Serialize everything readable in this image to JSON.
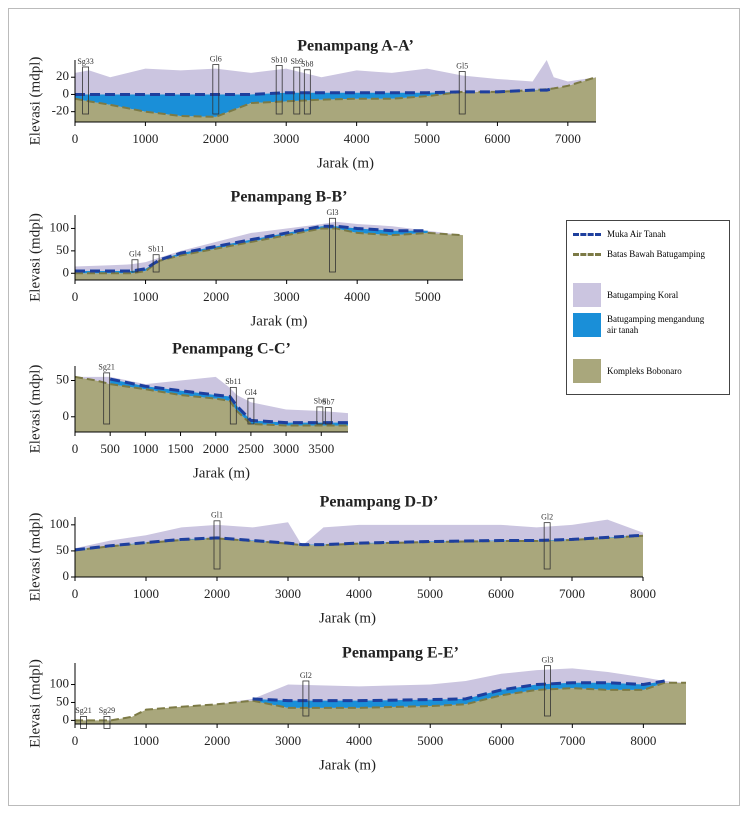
{
  "legend": [
    {
      "label": "Muka Air Tanah",
      "color": "#1e3f9e",
      "kind": "dash"
    },
    {
      "label": "Batas Bawah Batugamping",
      "color": "#7c7a45",
      "kind": "dash"
    },
    {
      "label": "Batugamping Koral",
      "color": "#cbc5e0",
      "kind": "fill"
    },
    {
      "label": "Batugamping mengandung air tanah",
      "color": "#1a8fd8",
      "kind": "fill"
    },
    {
      "label": "Kompleks Bobonaro",
      "color": "#a9a77c",
      "kind": "fill"
    }
  ],
  "chart_data": [
    {
      "type": "area",
      "title": "Penampang A-A’",
      "xlabel": "Jarak (m)",
      "ylabel": "Elevasi (mdpl)",
      "xlim": [
        0,
        7400
      ],
      "ylim": [
        -32,
        40
      ],
      "xticks": [
        0,
        1000,
        2000,
        3000,
        4000,
        5000,
        6000,
        7000
      ],
      "yticks": [
        -20,
        0,
        20
      ],
      "x": [
        0,
        200,
        500,
        1000,
        1500,
        2000,
        2500,
        3000,
        3500,
        4000,
        4500,
        5000,
        5500,
        6000,
        6500,
        6700,
        6800,
        7000,
        7400
      ],
      "surface": [
        25,
        28,
        20,
        30,
        28,
        30,
        25,
        30,
        20,
        28,
        25,
        30,
        22,
        18,
        15,
        40,
        20,
        15,
        20
      ],
      "water_table": [
        0,
        0,
        0,
        0,
        0,
        0,
        0,
        2,
        2,
        2,
        2,
        2,
        3,
        3,
        5,
        5,
        7,
        null,
        null
      ],
      "limestone_base": [
        -5,
        -8,
        -12,
        -20,
        -25,
        -26,
        -10,
        -8,
        -6,
        -5,
        -5,
        -2,
        3,
        3,
        5,
        6,
        7,
        10,
        20
      ],
      "wells": [
        {
          "label": "Sg33",
          "x": 150
        },
        {
          "label": "Gl6",
          "x": 2000
        },
        {
          "label": "Sb10",
          "x": 2900
        },
        {
          "label": "Sb9",
          "x": 3150
        },
        {
          "label": "Sb8",
          "x": 3300
        },
        {
          "label": "Gl5",
          "x": 5500
        }
      ]
    },
    {
      "type": "area",
      "title": "Penampang B-B’",
      "xlabel": "Jarak (m)",
      "ylabel": "Elevasi (mdpl)",
      "xlim": [
        0,
        5500
      ],
      "ylim": [
        -15,
        130
      ],
      "xticks": [
        0,
        1000,
        2000,
        3000,
        4000,
        5000
      ],
      "yticks": [
        0,
        50,
        100
      ],
      "x": [
        0,
        500,
        800,
        1000,
        1200,
        1500,
        2000,
        2500,
        3000,
        3500,
        3700,
        4000,
        4500,
        5000,
        5500
      ],
      "surface": [
        15,
        18,
        20,
        25,
        35,
        50,
        70,
        90,
        100,
        110,
        115,
        110,
        105,
        95,
        85
      ],
      "water_table": [
        5,
        5,
        5,
        10,
        30,
        45,
        60,
        75,
        90,
        105,
        105,
        100,
        95,
        95,
        null
      ],
      "limestone_base": [
        0,
        0,
        0,
        5,
        28,
        40,
        55,
        70,
        85,
        100,
        100,
        90,
        85,
        90,
        85
      ],
      "wells": [
        {
          "label": "Gl4",
          "x": 850
        },
        {
          "label": "Sb11",
          "x": 1150
        },
        {
          "label": "Gl3",
          "x": 3650
        }
      ]
    },
    {
      "type": "area",
      "title": "Penampang C-C’",
      "xlabel": "Jarak (m)",
      "ylabel": "Elevasi (mdpl)",
      "xlim": [
        0,
        3880
      ],
      "ylim": [
        -21,
        70
      ],
      "xticks": [
        0,
        500,
        1000,
        1500,
        2000,
        2500,
        3000,
        3500
      ],
      "yticks": [
        0,
        50
      ],
      "x": [
        0,
        300,
        500,
        1000,
        1500,
        2000,
        2200,
        2300,
        2500,
        3000,
        3500,
        3880
      ],
      "surface": [
        55,
        55,
        55,
        45,
        50,
        55,
        40,
        30,
        20,
        10,
        8,
        5
      ],
      "water_table": [
        null,
        null,
        52,
        42,
        36,
        30,
        28,
        15,
        -5,
        -8,
        -8,
        -8
      ],
      "limestone_base": [
        55,
        50,
        45,
        38,
        30,
        25,
        22,
        8,
        -10,
        -12,
        -12,
        -12
      ],
      "wells": [
        {
          "label": "Sg21",
          "x": 450
        },
        {
          "label": "Sb11",
          "x": 2250
        },
        {
          "label": "Gl4",
          "x": 2500
        },
        {
          "label": "Sb6",
          "x": 3480
        },
        {
          "label": "Sb7",
          "x": 3600
        }
      ]
    },
    {
      "type": "area",
      "title": "Penampang D-D’",
      "xlabel": "Jarak (m)",
      "ylabel": "Elevasi (mdpl)",
      "xlim": [
        0,
        8000
      ],
      "ylim": [
        0,
        115
      ],
      "xticks": [
        0,
        1000,
        2000,
        3000,
        4000,
        5000,
        6000,
        7000,
        8000
      ],
      "yticks": [
        0,
        50,
        100
      ],
      "x": [
        0,
        500,
        1000,
        1500,
        2000,
        2500,
        3000,
        3200,
        3500,
        4000,
        5000,
        6000,
        6500,
        7000,
        7500,
        8000
      ],
      "surface": [
        55,
        70,
        80,
        95,
        100,
        95,
        105,
        60,
        95,
        100,
        100,
        100,
        95,
        100,
        110,
        85
      ],
      "water_table": [
        52,
        60,
        66,
        72,
        75,
        70,
        65,
        62,
        62,
        65,
        68,
        70,
        70,
        72,
        76,
        80
      ],
      "limestone_base": [
        51,
        59,
        65,
        71,
        74,
        69,
        64,
        61,
        61,
        64,
        67,
        69,
        69,
        71,
        75,
        79
      ],
      "wells": [
        {
          "label": "Gl1",
          "x": 2000
        },
        {
          "label": "Gl2",
          "x": 6650
        }
      ]
    },
    {
      "type": "area",
      "title": "Penampang E-E’",
      "xlabel": "Jarak (m)",
      "ylabel": "Elevasi (mdpl)",
      "xlim": [
        0,
        8600
      ],
      "ylim": [
        -10,
        160
      ],
      "xticks": [
        0,
        1000,
        2000,
        3000,
        4000,
        5000,
        6000,
        7000,
        8000
      ],
      "yticks": [
        0,
        50,
        100
      ],
      "x": [
        0,
        500,
        800,
        1000,
        1500,
        2000,
        2500,
        3000,
        4000,
        5000,
        5500,
        6000,
        6500,
        7000,
        7500,
        8000,
        8300,
        8600
      ],
      "surface": [
        0,
        0,
        10,
        30,
        38,
        45,
        60,
        100,
        95,
        100,
        110,
        130,
        140,
        145,
        135,
        120,
        110,
        105
      ],
      "water_table": [
        null,
        null,
        null,
        null,
        null,
        null,
        60,
        55,
        55,
        58,
        60,
        85,
        100,
        105,
        105,
        100,
        110,
        null
      ],
      "limestone_base": [
        0,
        0,
        10,
        30,
        38,
        45,
        55,
        35,
        35,
        40,
        45,
        70,
        85,
        90,
        85,
        85,
        105,
        105
      ],
      "wells": [
        {
          "label": "Sg21",
          "x": 120
        },
        {
          "label": "Sg29",
          "x": 450
        },
        {
          "label": "Gl2",
          "x": 3250
        },
        {
          "label": "Gl3",
          "x": 6650
        }
      ]
    }
  ]
}
